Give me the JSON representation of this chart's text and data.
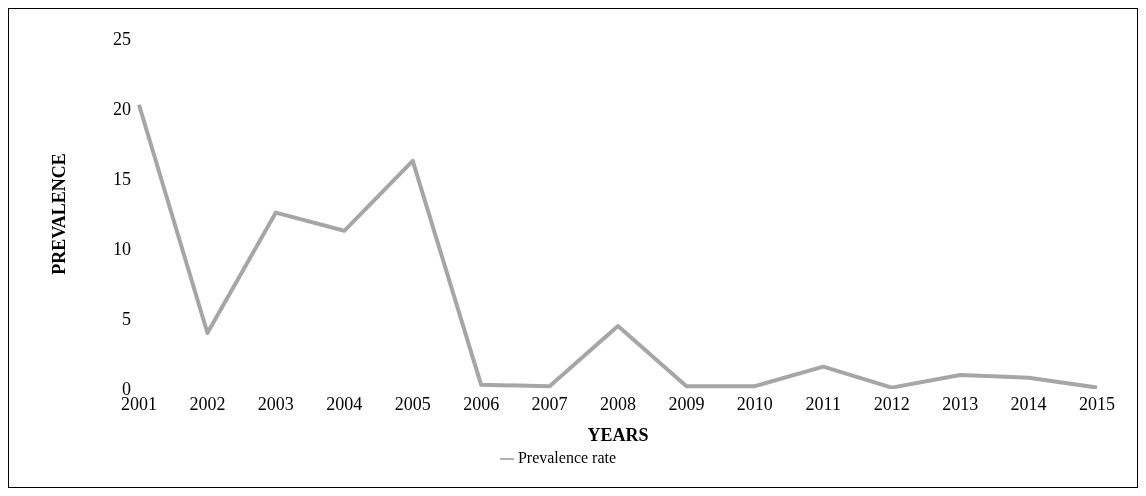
{
  "chart_data": {
    "type": "line",
    "xlabel": "YEARS",
    "ylabel": "PREVALENCE",
    "categories": [
      "2001",
      "2002",
      "2003",
      "2004",
      "2005",
      "2006",
      "2007",
      "2008",
      "2009",
      "2010",
      "2011",
      "2012",
      "2013",
      "2014",
      "2015"
    ],
    "series": [
      {
        "name": "Prevalence rate",
        "color": "#a6a6a6",
        "values": [
          20.3,
          4,
          12.6,
          11.3,
          16.3,
          0.3,
          0.2,
          4.5,
          0.2,
          0.2,
          1.6,
          0.1,
          1.0,
          0.8,
          0.1
        ]
      }
    ],
    "ylim": [
      0,
      25
    ],
    "yticks": [
      0,
      5,
      10,
      15,
      20,
      25
    ],
    "grid": false,
    "legend": "bottom",
    "marker": "none",
    "line_style": "solid"
  }
}
